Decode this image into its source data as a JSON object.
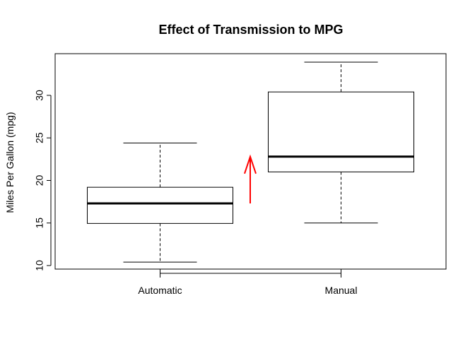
{
  "chart_data": {
    "type": "boxplot",
    "title": "Effect of Transmission to MPG",
    "xlabel": "",
    "ylabel": "Miles Per Gallon (mpg)",
    "ylim": [
      9.5,
      35
    ],
    "yticks": [
      10,
      15,
      20,
      25,
      30
    ],
    "categories": [
      "Automatic",
      "Manual"
    ],
    "boxes": [
      {
        "category": "Automatic",
        "min": 10.4,
        "q1": 14.95,
        "median": 17.3,
        "q3": 19.2,
        "max": 24.4
      },
      {
        "category": "Manual",
        "min": 15.0,
        "q1": 21.0,
        "median": 22.8,
        "q3": 30.4,
        "max": 33.9
      }
    ],
    "grid": false,
    "legend": "none",
    "annotation": {
      "type": "arrow",
      "color": "#ff0000",
      "direction": "up",
      "from_y": 17.3,
      "to_y": 22.8
    }
  }
}
